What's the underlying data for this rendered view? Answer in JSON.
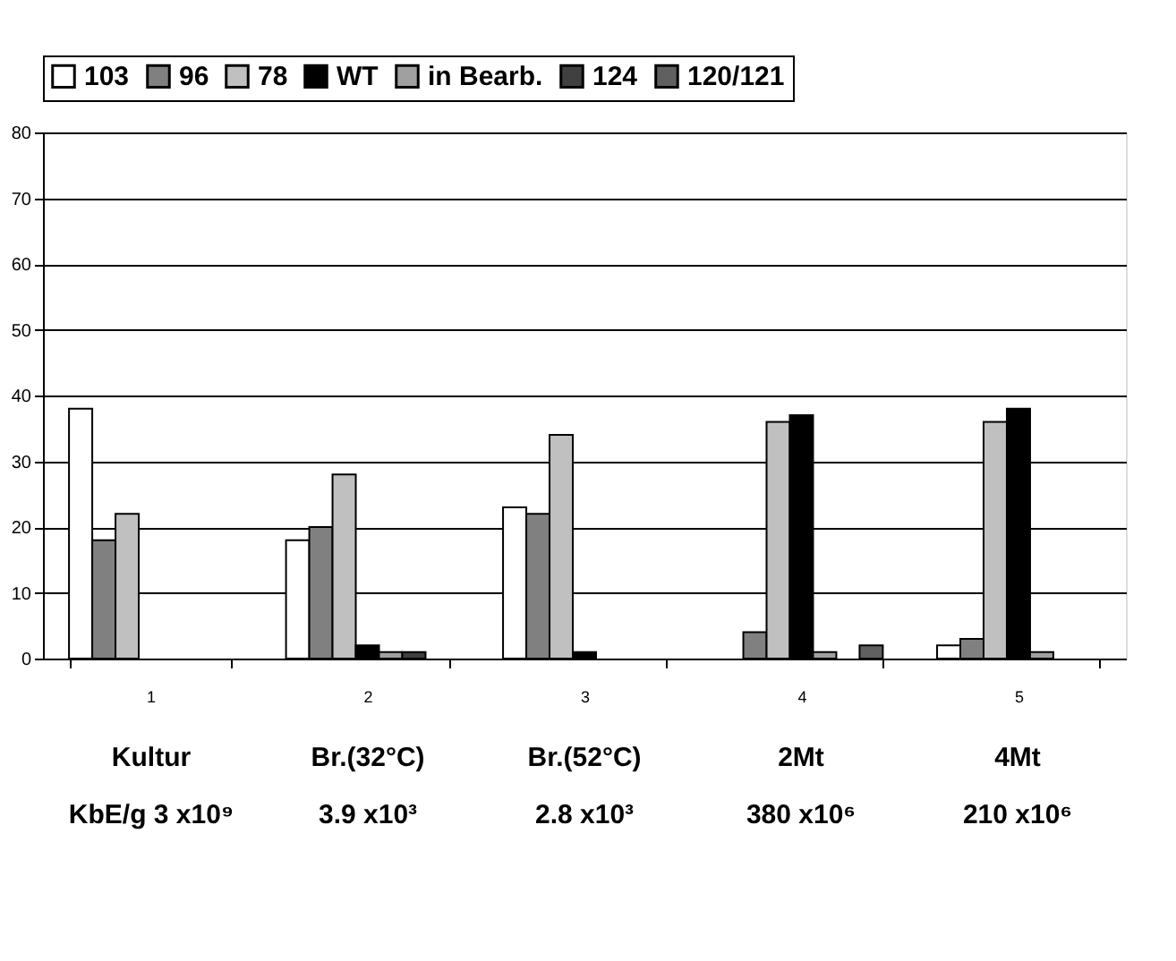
{
  "chart_data": {
    "type": "bar",
    "categories": [
      "1",
      "2",
      "3",
      "4",
      "5"
    ],
    "series": [
      {
        "name": "103",
        "color": "#ffffff",
        "values": [
          38,
          18,
          23,
          null,
          2
        ]
      },
      {
        "name": "96",
        "color": "#808080",
        "values": [
          18,
          20,
          22,
          4,
          3
        ]
      },
      {
        "name": "78",
        "color": "#c0c0c0",
        "values": [
          22,
          28,
          34,
          36,
          36
        ]
      },
      {
        "name": "WT",
        "color": "#000000",
        "values": [
          null,
          2,
          1,
          37,
          38
        ]
      },
      {
        "name": "in Bearb.",
        "color": "#a0a0a0",
        "values": [
          null,
          1,
          null,
          1,
          1
        ]
      },
      {
        "name": "124",
        "color": "#404040",
        "values": [
          null,
          1,
          null,
          null,
          null
        ]
      },
      {
        "name": "120/121",
        "color": "#606060",
        "values": [
          null,
          null,
          null,
          2,
          null
        ]
      }
    ],
    "ylim": [
      0,
      80
    ],
    "yticks": [
      0,
      10,
      20,
      30,
      40,
      50,
      60,
      70,
      80
    ],
    "grid": "y",
    "legend": "top",
    "annotations": [
      "Kultur",
      "Br.(32°C)",
      "Br.(52°C)",
      "2Mt",
      "4Mt",
      "KbE/g 3 x10⁹",
      "3.9 x10³",
      "2.8 x10³",
      "380 x10⁶",
      "210 x10⁶"
    ]
  }
}
